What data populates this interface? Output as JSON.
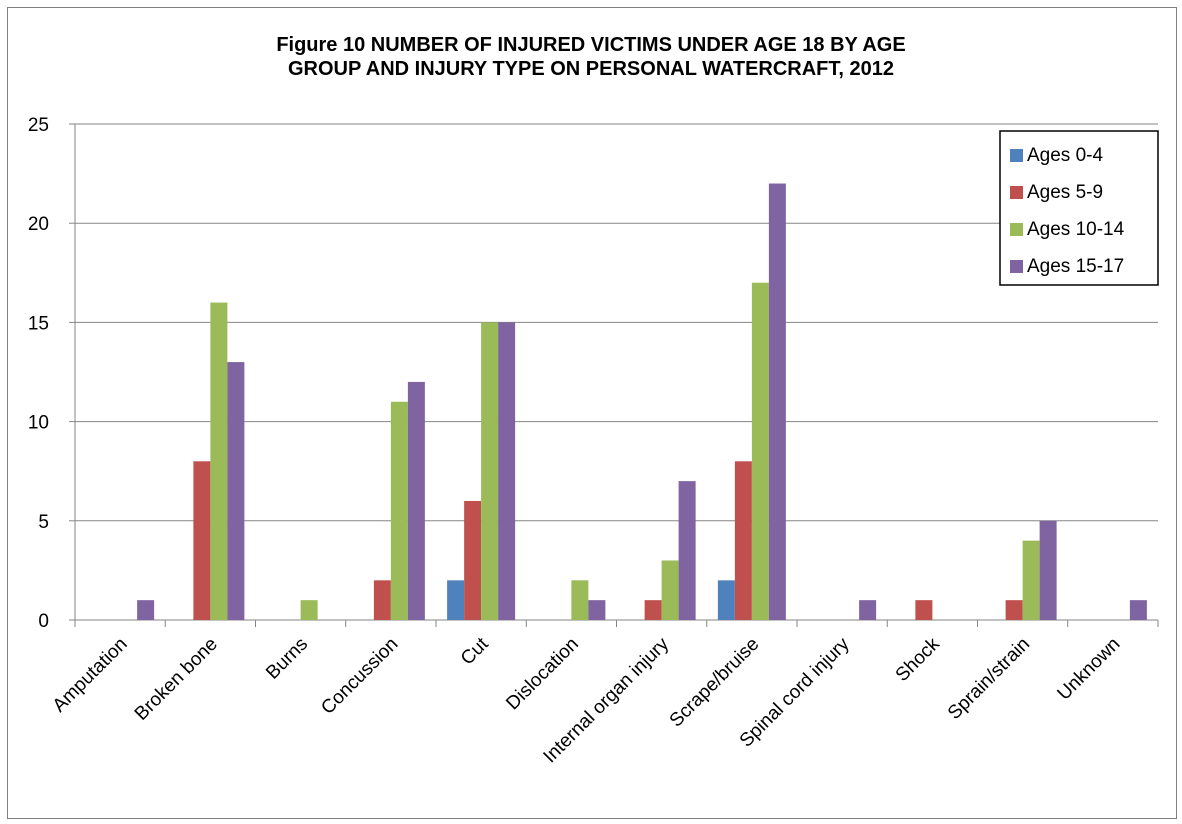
{
  "chart_data": {
    "type": "bar",
    "title_lines": [
      "Figure 10 NUMBER OF INJURED VICTIMS UNDER AGE 18 BY AGE",
      "GROUP AND INJURY TYPE ON PERSONAL WATERCRAFT, 2012"
    ],
    "xlabel": "",
    "ylabel": "",
    "ylim": [
      0,
      25
    ],
    "yticks": [
      0,
      5,
      10,
      15,
      20,
      25
    ],
    "grid": true,
    "legend_position": "top-right",
    "categories": [
      "Amputation",
      "Broken bone",
      "Burns",
      "Concussion",
      "Cut",
      "Dislocation",
      "Internal organ injury",
      "Scrape/bruise",
      "Spinal cord injury",
      "Shock",
      "Sprain/strain",
      "Unknown"
    ],
    "series": [
      {
        "name": "Ages 0-4",
        "color": "#4f81bd",
        "values": [
          0,
          0,
          0,
          0,
          2,
          0,
          0,
          2,
          0,
          0,
          0,
          0
        ]
      },
      {
        "name": "Ages 5-9",
        "color": "#c0504d",
        "values": [
          0,
          8,
          0,
          2,
          6,
          0,
          1,
          8,
          0,
          1,
          1,
          0
        ]
      },
      {
        "name": "Ages 10-14",
        "color": "#9bbb59",
        "values": [
          0,
          16,
          1,
          11,
          15,
          2,
          3,
          17,
          0,
          0,
          4,
          0
        ]
      },
      {
        "name": "Ages 15-17",
        "color": "#8064a2",
        "values": [
          1,
          13,
          0,
          12,
          15,
          1,
          7,
          22,
          1,
          0,
          5,
          1
        ]
      }
    ]
  }
}
